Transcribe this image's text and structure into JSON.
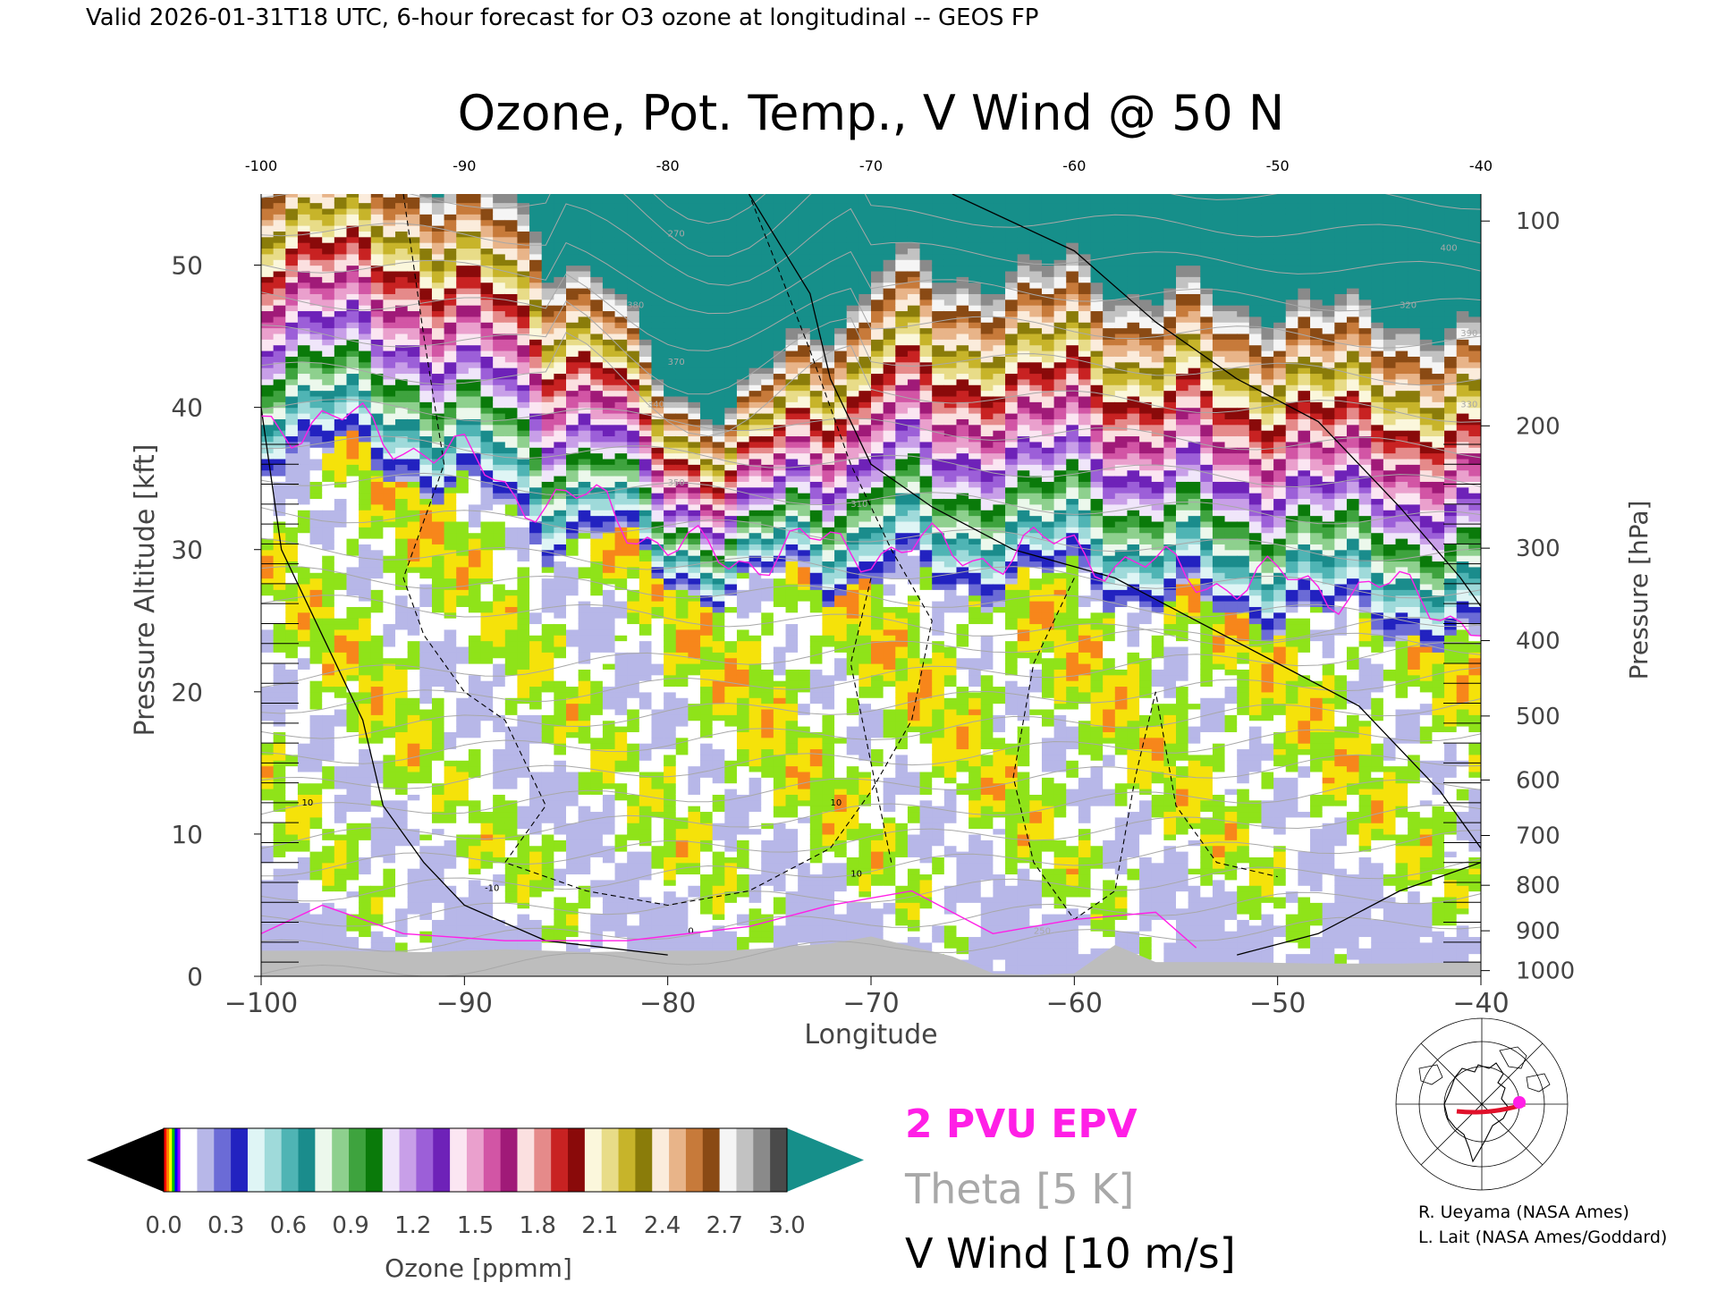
{
  "header": {
    "valid_line": "Valid 2026-01-31T18 UTC, 6-hour forecast for O3 ozone at longitudinal -- GEOS FP"
  },
  "chart_data": {
    "type": "heatmap",
    "title": "Ozone, Pot. Temp., V Wind @ 50 N",
    "xlabel": "Longitude",
    "ylabel": "Pressure Altitude [kft]",
    "y2label": "Pressure [hPa]",
    "xlim": [
      -100,
      -40
    ],
    "ylim": [
      0,
      55
    ],
    "x_ticks": [
      -100,
      -90,
      -80,
      -70,
      -60,
      -50,
      -40
    ],
    "x_tick_labels": [
      "−100",
      "−90",
      "−80",
      "−70",
      "−60",
      "−50",
      "−40"
    ],
    "top_tick_labels": [
      "-100",
      "-90",
      "-80",
      "-70",
      "-60",
      "-50",
      "-40"
    ],
    "y_ticks": [
      0,
      10,
      20,
      30,
      40,
      50
    ],
    "pressure_ticks": [
      {
        "hpa": 100,
        "kft": 53.1
      },
      {
        "hpa": 200,
        "kft": 38.7
      },
      {
        "hpa": 300,
        "kft": 30.1
      },
      {
        "hpa": 400,
        "kft": 23.6
      },
      {
        "hpa": 500,
        "kft": 18.3
      },
      {
        "hpa": 600,
        "kft": 13.8
      },
      {
        "hpa": 700,
        "kft": 9.9
      },
      {
        "hpa": 800,
        "kft": 6.4
      },
      {
        "hpa": 900,
        "kft": 3.2
      },
      {
        "hpa": 1000,
        "kft": 0.4
      }
    ],
    "colorbar": {
      "label": "Ozone [ppmm]",
      "min": 0.0,
      "max": 3.0,
      "tick_labels": [
        "0.0",
        "0.3",
        "0.6",
        "0.9",
        "1.2",
        "1.5",
        "1.8",
        "2.1",
        "2.4",
        "2.7",
        "3.0"
      ],
      "colors": [
        "#f7861b",
        "#f5e20a",
        "#8fe319",
        "#ffffff",
        "#b7b7e8",
        "#6b6bd6",
        "#2222c0",
        "#dff5f5",
        "#9fdada",
        "#4fb4b4",
        "#1a8c8c",
        "#ecf8ec",
        "#8ed08e",
        "#3ea33e",
        "#0a7a0a",
        "#f0e6fa",
        "#c89fe8",
        "#9c5fd8",
        "#6e22b8",
        "#fbe6f2",
        "#eaa0cd",
        "#d255a5",
        "#a01a78",
        "#fbe0e0",
        "#e58a8a",
        "#c82222",
        "#8a0a0a",
        "#fbf7dc",
        "#e8dc88",
        "#c7b42a",
        "#8a7c0a",
        "#fbecdc",
        "#e8b489",
        "#c77a3a",
        "#8a4a14",
        "#f5f5f5",
        "#c2c2c2",
        "#8a8a8a",
        "#4a4a4a"
      ],
      "under_color": "#000000",
      "over_color": "#168f8a"
    },
    "legend": [
      {
        "text": "2 PVU EPV",
        "color": "#ff1fe6"
      },
      {
        "text": "Theta [5 K]",
        "color": "#a8a8a8"
      },
      {
        "text": "V Wind [10 m/s]",
        "color": "#000000"
      }
    ],
    "theta_contour_labels": [
      "250",
      "270",
      "310",
      "320",
      "330",
      "340",
      "350",
      "370",
      "380",
      "390",
      "400"
    ],
    "wind_contour_labels": [
      "-10",
      "0",
      "10"
    ],
    "colors": {
      "epv": "#ff1fe6",
      "theta": "#a8a8a8",
      "wind": "#000000",
      "terrain": "#bdbdbd",
      "top_fill": "#168f8a"
    }
  },
  "credits": {
    "line1": "R. Ueyama (NASA Ames)",
    "line2": "L. Lait (NASA Ames/Goddard)"
  },
  "inset_map": {
    "track_color": "#e0102a",
    "marker_color": "#ff1fe6"
  }
}
